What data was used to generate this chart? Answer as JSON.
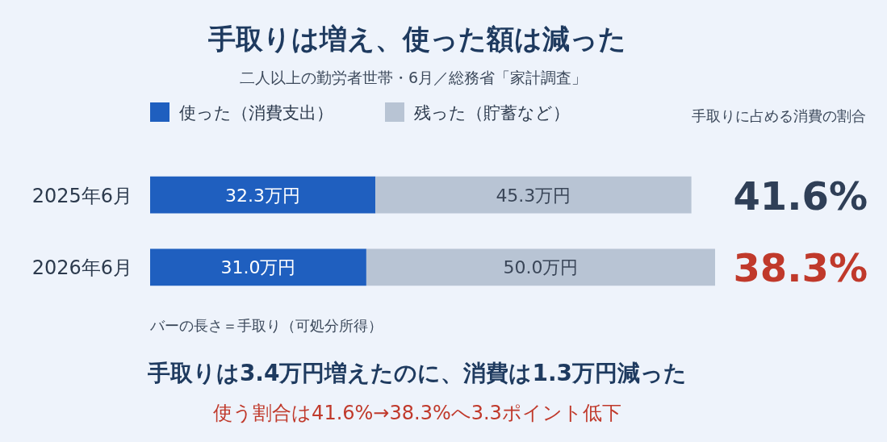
{
  "chart_data": {
    "type": "bar",
    "orientation": "horizontal",
    "stacked": true,
    "title": "手取りは増え、使った額は減った",
    "subtitle": "二人以上の勤労者世帯・6月／総務省「家計調査」",
    "categories": [
      "2025年6月",
      "2026年6月"
    ],
    "series": [
      {
        "name": "使った（消費支出）",
        "color": "#1f5fbf",
        "values": [
          32.3,
          31.0
        ],
        "value_labels": [
          "32.3万円",
          "31.0万円"
        ]
      },
      {
        "name": "残った（貯蓄など）",
        "color": "#b8c4d4",
        "values": [
          45.3,
          50.0
        ],
        "value_labels": [
          "45.3万円",
          "50.0万円"
        ]
      }
    ],
    "legend": "top left",
    "annotations": [
      "手取りに占める消費の割合",
      "41.6%",
      "38.3%",
      "バーの長さ＝手取り（可処分所得）",
      "手取りは3.4万円増えたのに、消費は1.3万円減った",
      "使う割合は41.6%→38.3%へ3.3ポイント低下"
    ]
  }
}
